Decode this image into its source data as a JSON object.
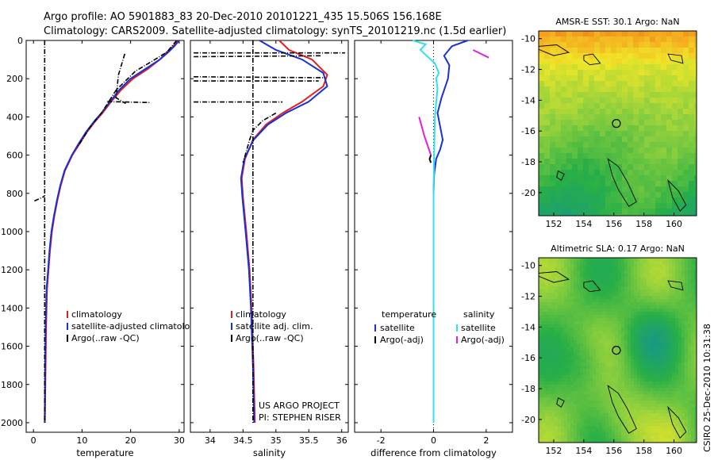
{
  "title_line1": "Argo profile: AO 5901883_83 20-Dec-2010 20101221_435 15.506S 156.168E",
  "title_line2": "Climatology: CARS2009. Satellite-adjusted climatology: synTS_20101219.nc (1.5d earlier)",
  "credit": "CSIRO 25-Dec-2010 10:31:38",
  "project_line1": "US ARGO PROJECT",
  "project_line2": "PI: STEPHEN RISER",
  "colors": {
    "clim": "#e32020",
    "sat": "#1830d8",
    "argo": "#000000",
    "sat_sal": "#30e0f0",
    "argo_sal": "#e020e0"
  },
  "chart_data": [
    {
      "type": "line",
      "name": "temperature-profile",
      "xlabel": "temperature",
      "ylabel": "",
      "xlim": [
        -1.5,
        31
      ],
      "ylim": [
        2050,
        0
      ],
      "xticks": [
        0,
        10,
        20,
        30
      ],
      "yticks": [
        0,
        200,
        400,
        600,
        800,
        1000,
        1200,
        1400,
        1600,
        1800,
        2000
      ],
      "legend": [
        "climatology",
        "satellite-adjusted climatology",
        "Argo(..raw -QC)"
      ],
      "series": [
        {
          "name": "climatology",
          "color": "clim",
          "x": [
            29.6,
            28.8,
            27.5,
            26.0,
            23.5,
            20.5,
            18.0,
            16.0,
            14.2,
            12.8,
            11.0,
            9.5,
            8.0,
            6.5,
            5.6,
            4.9,
            4.3,
            3.8,
            3.4,
            3.1,
            2.8,
            2.6,
            2.5,
            2.4,
            2.35
          ],
          "y": [
            0,
            30,
            60,
            100,
            150,
            200,
            260,
            320,
            380,
            420,
            480,
            540,
            600,
            680,
            760,
            840,
            920,
            1000,
            1100,
            1200,
            1300,
            1500,
            1700,
            1900,
            2000
          ]
        },
        {
          "name": "satellite-adjusted climatology",
          "color": "sat",
          "x": [
            30.0,
            29.0,
            27.8,
            26.0,
            23.0,
            20.0,
            17.6,
            15.8,
            14.0,
            12.6,
            10.8,
            9.3,
            7.9,
            6.4,
            5.5,
            4.8,
            4.2,
            3.7,
            3.3,
            3.0,
            2.7,
            2.5,
            2.4,
            2.35,
            2.3
          ],
          "y": [
            0,
            30,
            60,
            100,
            150,
            200,
            260,
            320,
            380,
            420,
            480,
            540,
            600,
            680,
            760,
            840,
            920,
            1000,
            1100,
            1200,
            1300,
            1500,
            1700,
            1900,
            2000
          ]
        },
        {
          "name": "Argo(..raw -QC)",
          "color": "argo",
          "dashed": true,
          "x": [
            2.3,
            2.3,
            2.3,
            2.3,
            2.3
          ],
          "y": [
            0,
            500,
            1000,
            1500,
            2000
          ]
        },
        {
          "name": "argo-spike-200",
          "color": "argo",
          "dashed": true,
          "x": [
            18.8,
            17.5,
            17.0,
            19.0
          ],
          "y": [
            70,
            180,
            300,
            330
          ]
        },
        {
          "name": "argo-spike-320",
          "color": "argo",
          "dashed": true,
          "x": [
            15.2,
            24.0
          ],
          "y": [
            320,
            325
          ]
        },
        {
          "name": "argo-spike-830",
          "color": "argo",
          "dashed": true,
          "x": [
            0.2,
            2.3
          ],
          "y": [
            840,
            815
          ]
        },
        {
          "name": "argo-surface",
          "color": "argo",
          "dashed": true,
          "x": [
            29.5,
            28.8,
            27.5,
            25.0,
            21.0,
            17.0,
            14.0,
            11.5,
            9.0
          ],
          "y": [
            0,
            20,
            60,
            100,
            160,
            260,
            380,
            460,
            560
          ]
        }
      ]
    },
    {
      "type": "line",
      "name": "salinity-profile",
      "xlabel": "salinity",
      "xlim": [
        33.7,
        36.1
      ],
      "ylim": [
        2050,
        0
      ],
      "xticks": [
        34,
        34.5,
        35,
        35.5,
        36
      ],
      "legend": [
        "climatology",
        "satellite adj. clim.",
        "Argo(..raw -QC)"
      ],
      "series": [
        {
          "name": "climatology",
          "color": "clim",
          "x": [
            35.05,
            35.2,
            35.55,
            35.78,
            35.72,
            35.4,
            35.1,
            34.85,
            34.65,
            34.53,
            34.48,
            34.5,
            34.55,
            34.6,
            34.63,
            34.66,
            34.68
          ],
          "y": [
            0,
            50,
            100,
            180,
            240,
            320,
            380,
            440,
            520,
            620,
            720,
            820,
            1000,
            1200,
            1400,
            1700,
            2000
          ]
        },
        {
          "name": "satellite adj. clim.",
          "color": "sat",
          "x": [
            34.75,
            35.0,
            35.4,
            35.72,
            35.78,
            35.5,
            35.15,
            34.88,
            34.66,
            34.52,
            34.47,
            34.49,
            34.54,
            34.59,
            34.62,
            34.65,
            34.67
          ],
          "y": [
            0,
            50,
            100,
            170,
            240,
            320,
            380,
            440,
            520,
            620,
            720,
            820,
            1000,
            1200,
            1400,
            1700,
            2000
          ]
        },
        {
          "name": "Argo(..raw -QC)",
          "color": "argo",
          "dashed": true,
          "x": [
            34.65,
            34.65,
            34.65,
            34.65
          ],
          "y": [
            0,
            700,
            1400,
            2000
          ]
        },
        {
          "name": "argo-spike-60",
          "color": "argo",
          "dashed": true,
          "x": [
            33.75,
            36.05
          ],
          "y": [
            65,
            65
          ]
        },
        {
          "name": "argo-spike-80",
          "color": "argo",
          "dashed": true,
          "x": [
            33.75,
            35.7
          ],
          "y": [
            85,
            80
          ]
        },
        {
          "name": "argo-spike-190",
          "color": "argo",
          "dashed": true,
          "x": [
            33.75,
            35.75
          ],
          "y": [
            190,
            195
          ]
        },
        {
          "name": "argo-spike-210",
          "color": "argo",
          "dashed": true,
          "x": [
            33.75,
            35.65
          ],
          "y": [
            212,
            212
          ]
        },
        {
          "name": "argo-spike-320",
          "color": "argo",
          "dashed": true,
          "x": [
            33.75,
            35.1
          ],
          "y": [
            322,
            322
          ]
        },
        {
          "name": "argo-upper",
          "color": "argo",
          "dashed": true,
          "x": [
            35.0,
            34.8,
            34.65,
            34.6,
            34.55,
            34.5
          ],
          "y": [
            380,
            420,
            470,
            520,
            580,
            640
          ]
        }
      ]
    },
    {
      "type": "line",
      "name": "difference-profile",
      "xlabel": "difference from climatology",
      "xlim": [
        -3,
        3
      ],
      "ylim": [
        2050,
        0
      ],
      "xticks": [
        -2,
        0,
        2
      ],
      "legend": [
        "temperature",
        "satellite",
        "Argo(-adj)",
        "salinity",
        "satellite",
        "Argo(-adj)"
      ],
      "series": [
        {
          "name": "temperature satellite",
          "color": "sat",
          "x": [
            1.3,
            0.7,
            0.4,
            0.6,
            0.55,
            0.3,
            0.15,
            0.25,
            0.35,
            0.25,
            0.1,
            0.02,
            0.0,
            0.0,
            0.0,
            0.0
          ],
          "y": [
            0,
            30,
            80,
            130,
            200,
            300,
            380,
            450,
            520,
            570,
            620,
            700,
            800,
            1000,
            1500,
            2000
          ]
        },
        {
          "name": "salinity satellite",
          "color": "sat_sal",
          "x": [
            -0.8,
            -0.3,
            -0.5,
            0.05,
            0.2,
            0.1,
            0.15,
            0.05,
            0.02,
            0.0,
            0.0,
            0.0
          ],
          "y": [
            0,
            20,
            50,
            120,
            170,
            200,
            250,
            400,
            600,
            800,
            1400,
            2000
          ]
        },
        {
          "name": "salinity Argo(-adj)",
          "color": "argo_sal",
          "x": [
            1.5,
            1.8,
            2.1
          ],
          "y": [
            50,
            70,
            90
          ]
        },
        {
          "name": "salinity Argo(-adj) 2",
          "color": "argo_sal",
          "x": [
            -0.55,
            -0.35,
            -0.1
          ],
          "y": [
            400,
            500,
            600
          ]
        },
        {
          "name": "temperature Argo(-adj)",
          "color": "argo",
          "x": [
            -0.1,
            -0.15,
            -0.1
          ],
          "y": [
            600,
            620,
            640
          ]
        }
      ]
    },
    {
      "type": "heatmap",
      "name": "sst-map",
      "title": "AMSR-E SST: 30.1 Argo: NaN",
      "xlim": [
        151,
        161.5
      ],
      "ylim": [
        -21.5,
        -9.5
      ],
      "xticks": [
        152,
        154,
        156,
        158,
        160
      ],
      "yticks": [
        -10,
        -12,
        -14,
        -16,
        -18,
        -20
      ],
      "marker": {
        "lon": 156.168,
        "lat": -15.506
      }
    },
    {
      "type": "heatmap",
      "name": "sla-map",
      "title": "Altimetric SLA: 0.17 Argo: NaN",
      "xlim": [
        151,
        161.5
      ],
      "ylim": [
        -21.5,
        -9.5
      ],
      "xticks": [
        152,
        154,
        156,
        158,
        160
      ],
      "yticks": [
        -10,
        -12,
        -14,
        -16,
        -18,
        -20
      ],
      "marker": {
        "lon": 156.168,
        "lat": -15.506
      }
    }
  ]
}
